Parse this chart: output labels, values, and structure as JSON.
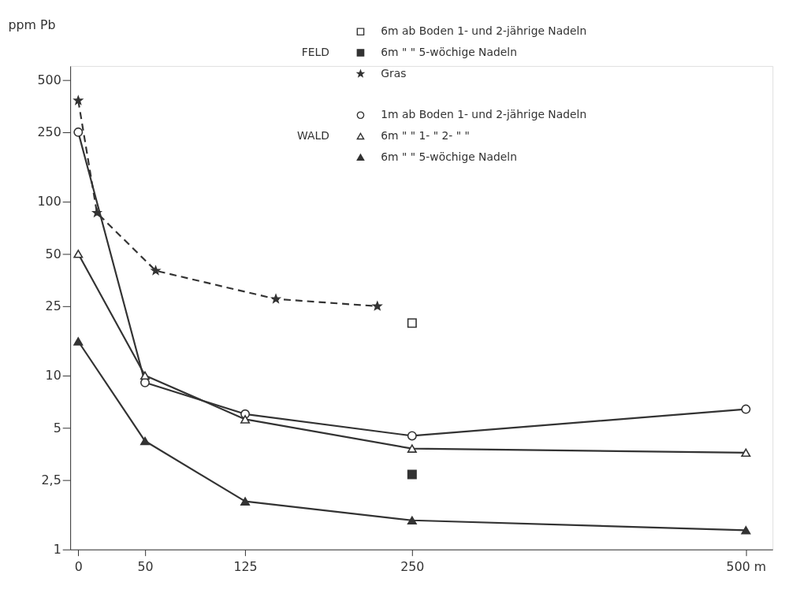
{
  "chart_data": {
    "type": "line",
    "ylabel": "ppm Pb",
    "log": "y",
    "xlim": [
      -6,
      520
    ],
    "xticks": [
      0,
      50,
      125,
      250,
      {
        "value": 500,
        "label": "500 m"
      }
    ],
    "ylim": [
      1,
      600
    ],
    "yticks": [
      1,
      {
        "value": 2.5,
        "label": "2,5"
      },
      5,
      10,
      25,
      50,
      100,
      250,
      500
    ],
    "legend": "top right",
    "annotations": [
      "FELD",
      "WALD"
    ],
    "series": [
      {
        "name": "6m ab Boden   1- und 2-jährige Nadeln",
        "type": "scatter",
        "marker": "square-open",
        "color": "#333333",
        "x": [
          250
        ],
        "values": [
          20
        ]
      },
      {
        "name": "6m   \"   \"   5-wöchige Nadeln",
        "type": "scatter",
        "marker": "square",
        "color": "#333333",
        "x": [
          250
        ],
        "values": [
          2.7
        ]
      },
      {
        "name": "Gras",
        "marker": "star",
        "line_style": "dashed",
        "color": "#333333",
        "x": [
          0,
          14,
          58,
          148,
          224
        ],
        "values": [
          380,
          86,
          40,
          27.5,
          25
        ]
      },
      {
        "name": "1m ab Boden   1- und 2-jährige Nadeln",
        "marker": "circle-open",
        "line_style": "solid",
        "color": "#333333",
        "x": [
          0,
          50,
          125,
          250,
          500
        ],
        "values": [
          250,
          9.1,
          6,
          4.5,
          6.4
        ]
      },
      {
        "name": "6m   \"   \"   1-  \"  2-  \"   \"",
        "marker": "triangle-open",
        "line_style": "solid",
        "color": "#333333",
        "x": [
          0,
          50,
          125,
          250,
          500
        ],
        "values": [
          50,
          10,
          5.6,
          3.8,
          3.6
        ]
      },
      {
        "name": "6m   \"   \"   5-wöchige Nadeln",
        "marker": "triangle",
        "line_style": "solid",
        "color": "#333333",
        "x": [
          0,
          50,
          125,
          250,
          500
        ],
        "values": [
          15.7,
          4.2,
          1.89,
          1.47,
          1.29
        ]
      }
    ]
  }
}
